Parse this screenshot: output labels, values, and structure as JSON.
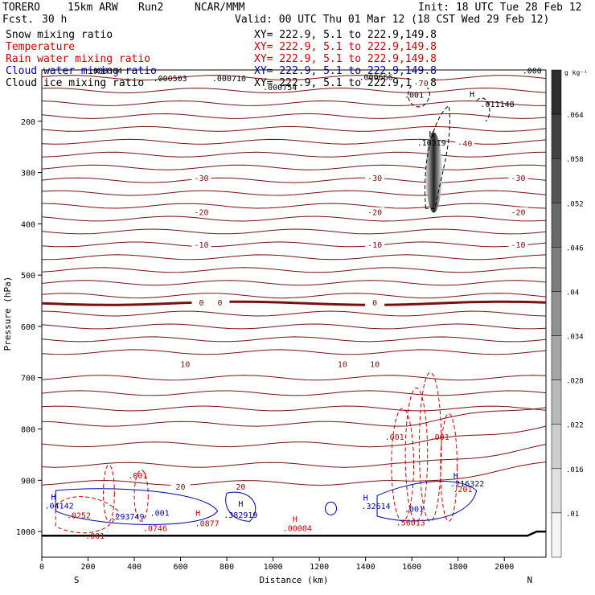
{
  "header": {
    "model": "TORERO",
    "resolution": "15km ARW",
    "run": "Run2",
    "center": "NCAR/MMM",
    "init": "Init: 18 UTC Tue 28 Feb 12",
    "fcst": "Fcst.",
    "fcst_hours": "30 h",
    "valid": "Valid: 00 UTC Thu 01 Mar 12 (18 CST Wed 29 Feb 12)"
  },
  "legend": [
    {
      "name": "Snow mixing ratio",
      "xy": "XY= 222.9, 5.1 to 222.9,149.8",
      "color": "#000000"
    },
    {
      "name": "Temperature",
      "xy": "XY= 222.9, 5.1 to 222.9,149.8",
      "color": "#cc0000"
    },
    {
      "name": "Rain water mixing ratio",
      "xy": "XY= 222.9, 5.1 to 222.9,149.8",
      "color": "#cc0000"
    },
    {
      "name": "Cloud water mixing ratio",
      "xy": "XY= 222.9, 5.1 to 222.9,149.8",
      "color": "#0000aa"
    },
    {
      "name": "Cloud ice mixing ratio",
      "xy": "XY= 222.9, 5.1 to 222.9,149.8",
      "color": "#000000"
    }
  ],
  "chart_data": {
    "type": "vertical cross-section",
    "xlabel": "Distance (km)",
    "ylabel": "Pressure (hPa)",
    "x_ticks": [
      0,
      200,
      400,
      600,
      800,
      1000,
      1200,
      1400,
      1600,
      1800,
      2000
    ],
    "xlim": [
      0,
      2180
    ],
    "y_ticks": [
      200,
      300,
      400,
      500,
      600,
      700,
      800,
      900,
      1000
    ],
    "ylim": [
      1050,
      100
    ],
    "left_end": "S",
    "right_end": "N",
    "colorbar": {
      "unit": "g kg⁻¹",
      "ticks": [
        ".01",
        ".016",
        ".022",
        ".028",
        ".034",
        ".04",
        ".046",
        ".052",
        ".058",
        ".064"
      ]
    },
    "temperature_contours": [
      {
        "label": "-70",
        "p": 125
      },
      {
        "label": "-40",
        "p": 243
      },
      {
        "label": "-30",
        "p": 310
      },
      {
        "label": "-20",
        "p": 377
      },
      {
        "label": "-10",
        "p": 440
      },
      {
        "label": "0",
        "p": 553
      },
      {
        "label": "10",
        "p": 673
      },
      {
        "label": "20",
        "p": 912
      }
    ],
    "annotations": [
      {
        "text": "H",
        "x": 1860,
        "p": 146,
        "color": "#000000"
      },
      {
        "text": ".011148",
        "x": 1970,
        "p": 166,
        "color": "#000000"
      },
      {
        "text": "H",
        "x": 1685,
        "p": 224,
        "color": "#000000"
      },
      {
        "text": ".16319",
        "x": 1685,
        "p": 241,
        "color": "#000000"
      },
      {
        "text": ".001",
        "x": 1610,
        "p": 148,
        "color": "#000000"
      },
      {
        "text": ".000304",
        "x": 275,
        "p": 101,
        "color": "#000000"
      },
      {
        "text": ".000503",
        "x": 555,
        "p": 116,
        "color": "#000000"
      },
      {
        "text": ".000710",
        "x": 810,
        "p": 116,
        "color": "#000000"
      },
      {
        "text": ".000754",
        "x": 1030,
        "p": 133,
        "color": "#000000"
      },
      {
        "text": ".000666",
        "x": 1445,
        "p": 113,
        "color": "#000000"
      },
      {
        "text": ".000",
        "x": 2120,
        "p": 101,
        "color": "#000000"
      },
      {
        "text": ".001",
        "x": 1525,
        "p": 815,
        "color": "#cc0000"
      },
      {
        "text": ".001",
        "x": 1720,
        "p": 815,
        "color": "#cc0000"
      },
      {
        "text": ".001",
        "x": 415,
        "p": 890,
        "color": "#cc0000"
      },
      {
        "text": ".001",
        "x": 230,
        "p": 1008,
        "color": "#cc0000"
      },
      {
        "text": "H",
        "x": 50,
        "p": 932,
        "color": "#0000aa"
      },
      {
        "text": ".04142",
        "x": 75,
        "p": 949,
        "color": "#0000aa"
      },
      {
        "text": ".0252",
        "x": 160,
        "p": 968,
        "color": "#cc0000"
      },
      {
        "text": ".293749",
        "x": 370,
        "p": 970,
        "color": "#0000aa"
      },
      {
        "text": ".001",
        "x": 510,
        "p": 963,
        "color": "#0000aa"
      },
      {
        "text": ".0746",
        "x": 490,
        "p": 993,
        "color": "#cc0000"
      },
      {
        "text": "H",
        "x": 675,
        "p": 963,
        "color": "#cc0000"
      },
      {
        "text": ".0877",
        "x": 715,
        "p": 983,
        "color": "#cc0000"
      },
      {
        "text": "H",
        "x": 860,
        "p": 945,
        "color": "#0000aa"
      },
      {
        "text": ".382919",
        "x": 860,
        "p": 967,
        "color": "#0000aa"
      },
      {
        "text": "H",
        "x": 1095,
        "p": 975,
        "color": "#cc0000"
      },
      {
        "text": ".00004",
        "x": 1105,
        "p": 993,
        "color": "#cc0000"
      },
      {
        "text": "H",
        "x": 1400,
        "p": 933,
        "color": "#0000aa"
      },
      {
        "text": ".32614",
        "x": 1445,
        "p": 950,
        "color": "#0000aa"
      },
      {
        "text": ".001",
        "x": 1610,
        "p": 955,
        "color": "#0000aa"
      },
      {
        "text": ".56013",
        "x": 1595,
        "p": 982,
        "color": "#cc0000"
      },
      {
        "text": "H",
        "x": 1790,
        "p": 890,
        "color": "#0000aa"
      },
      {
        "text": ".216322",
        "x": 1840,
        "p": 906,
        "color": "#0000aa"
      },
      {
        "text": ".201",
        "x": 1820,
        "p": 917,
        "color": "#cc0000"
      }
    ]
  }
}
